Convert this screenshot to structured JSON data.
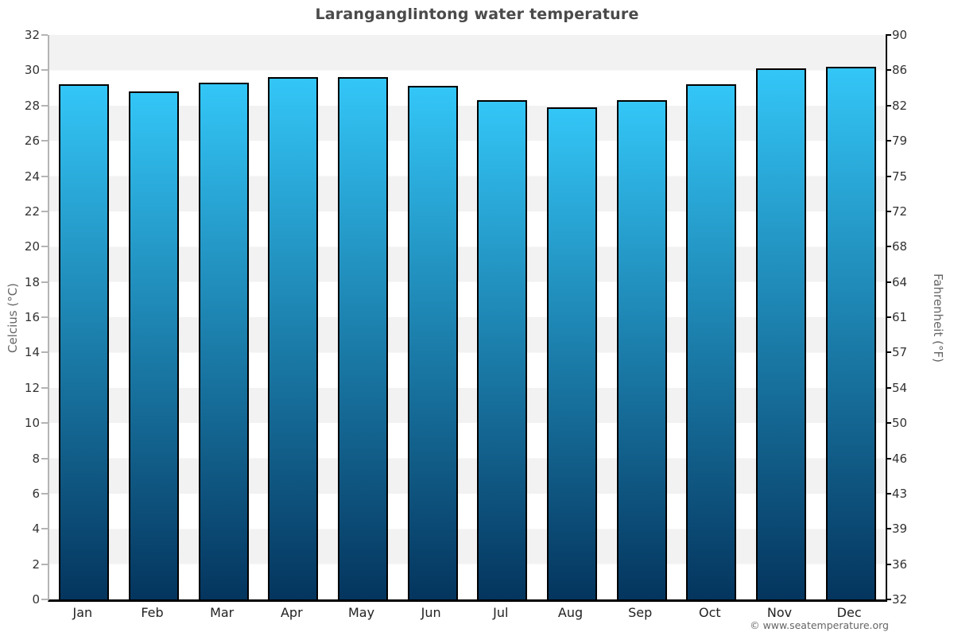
{
  "title": "Laranganglintong water temperature",
  "copyright": "© www.seatemperature.org",
  "chart_data": {
    "type": "bar",
    "title": "Laranganglintong water temperature",
    "categories": [
      "Jan",
      "Feb",
      "Mar",
      "Apr",
      "May",
      "Jun",
      "Jul",
      "Aug",
      "Sep",
      "Oct",
      "Nov",
      "Dec"
    ],
    "values": [
      29.2,
      28.8,
      29.3,
      29.6,
      29.6,
      29.1,
      28.3,
      27.9,
      28.3,
      29.2,
      30.1,
      30.2
    ],
    "unit": "°C",
    "ylabel_left": "Celcius (°C)",
    "ylabel_right": "Fahrenheit (°F)",
    "ylim": [
      0,
      32
    ],
    "ytick_step": 2,
    "yticks_left": [
      0,
      2,
      4,
      6,
      8,
      10,
      12,
      14,
      16,
      18,
      20,
      22,
      24,
      26,
      28,
      30,
      32
    ],
    "yticks_right_labels": [
      "32",
      "36",
      "39",
      "43",
      "46",
      "50",
      "54",
      "57",
      "61",
      "64",
      "68",
      "72",
      "75",
      "79",
      "82",
      "86",
      "90"
    ],
    "grid": "banded-horizontal",
    "legend": "none",
    "colors": {
      "bar_gradient_top": "#33c6f7",
      "bar_gradient_bottom": "#04355e",
      "bar_border": "#000000",
      "band_fill": "#f2f2f2",
      "band_alt_fill": "#ffffff",
      "title_text": "#4a4a4a",
      "tick_text": "#333333",
      "axis_title_text": "#666666",
      "left_axis_line": "#b4b4b4",
      "right_axis_line": "#000000",
      "bottom_axis_line": "#000000"
    }
  }
}
